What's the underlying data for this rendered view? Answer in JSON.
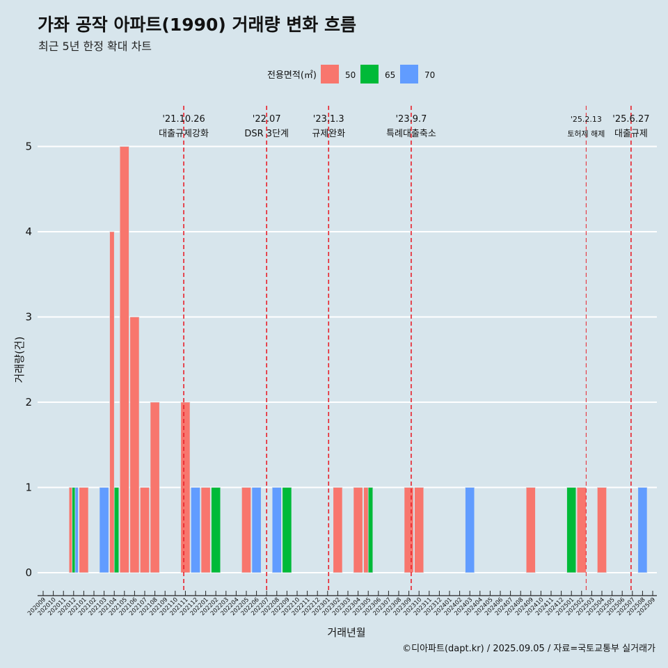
{
  "chart_data": {
    "type": "bar",
    "title": "가좌 공작 아파트(1990) 거래량 변화 흐름",
    "subtitle": "최근 5년 한정 확대 차트",
    "xlabel": "거래년월",
    "ylabel": "거래량(건)",
    "ylim": [
      0,
      5
    ],
    "yticks": [
      0,
      1,
      2,
      3,
      4,
      5
    ],
    "grid": true,
    "legend": {
      "title": "전용면적(㎡)",
      "position": "top"
    },
    "categories": [
      "202009",
      "202010",
      "202011",
      "202012",
      "202101",
      "202102",
      "202103",
      "202104",
      "202105",
      "202106",
      "202107",
      "202108",
      "202109",
      "202110",
      "202111",
      "202112",
      "202201",
      "202202",
      "202203",
      "202204",
      "202205",
      "202206",
      "202207",
      "202208",
      "202209",
      "202210",
      "202211",
      "202212",
      "202301",
      "202302",
      "202303",
      "202304",
      "202305",
      "202306",
      "202307",
      "202308",
      "202309",
      "202310",
      "202311",
      "202312",
      "202401",
      "202402",
      "202403",
      "202404",
      "202405",
      "202406",
      "202407",
      "202408",
      "202409",
      "202410",
      "202411",
      "202412",
      "202501",
      "202502",
      "202503",
      "202504",
      "202505",
      "202506",
      "202507",
      "202508",
      "202509"
    ],
    "series": [
      {
        "name": "50",
        "color": "#f8766d",
        "points": [
          [
            "202012",
            1
          ],
          [
            "202101",
            1
          ],
          [
            "202104",
            4
          ],
          [
            "202105",
            5
          ],
          [
            "202106",
            3
          ],
          [
            "202107",
            1
          ],
          [
            "202108",
            2
          ],
          [
            "202111",
            2
          ],
          [
            "202201",
            1
          ],
          [
            "202205",
            1
          ],
          [
            "202302",
            1
          ],
          [
            "202304",
            1
          ],
          [
            "202305",
            1
          ],
          [
            "202309",
            1
          ],
          [
            "202310",
            1
          ],
          [
            "202409",
            1
          ],
          [
            "202502",
            1
          ],
          [
            "202504",
            1
          ]
        ]
      },
      {
        "name": "65",
        "color": "#00ba38",
        "points": [
          [
            "202012",
            1
          ],
          [
            "202104",
            1
          ],
          [
            "202202",
            1
          ],
          [
            "202209",
            1
          ],
          [
            "202305",
            1
          ],
          [
            "202501",
            1
          ]
        ]
      },
      {
        "name": "70",
        "color": "#619cff",
        "points": [
          [
            "202012",
            1
          ],
          [
            "202103",
            1
          ],
          [
            "202112",
            1
          ],
          [
            "202206",
            1
          ],
          [
            "202208",
            1
          ],
          [
            "202403",
            1
          ],
          [
            "202508",
            1
          ]
        ]
      }
    ],
    "events": [
      {
        "date": "'21.10.26",
        "label": "대출규제강화",
        "month": "202110",
        "fraction": 0.84
      },
      {
        "date": "'22.07",
        "label": "DSR 3단계",
        "month": "202207",
        "fraction": 0.0
      },
      {
        "date": "'23.1.3",
        "label": "규제완화",
        "month": "202301",
        "fraction": 0.1
      },
      {
        "date": "'23.9.7",
        "label": "특례대출축소",
        "month": "202309",
        "fraction": 0.23
      },
      {
        "date": "'25.2.13",
        "label": "토허제 해제",
        "month": "202502",
        "fraction": 0.45,
        "small": true
      },
      {
        "date": "'25.6.27",
        "label": "대출규제",
        "month": "202506",
        "fraction": 0.87
      }
    ]
  },
  "caption": "©디아파트(dapt.kr) / 2025.09.05 / 자료=국토교통부 실거래가"
}
